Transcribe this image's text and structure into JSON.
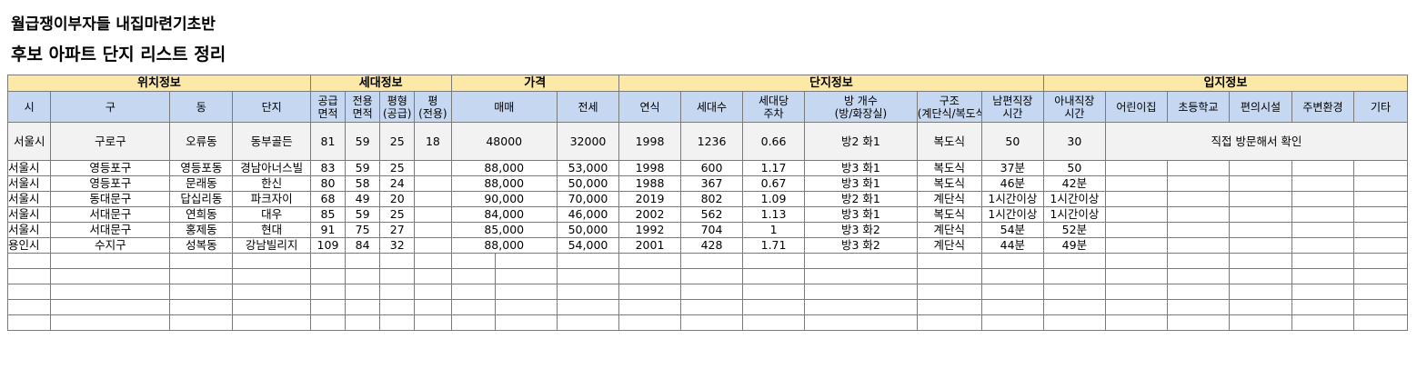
{
  "title_line1": "월급쟁이부자들 내집마련기초반",
  "title_line2": "후보 아파트 단지 리스트 정리",
  "groups": {
    "location": "위치정보",
    "household": "세대정보",
    "price": "가격",
    "complex": "단지정보",
    "site": "입지정보"
  },
  "headers": {
    "city": "시",
    "district": "구",
    "dong": "동",
    "complex": "단지",
    "supply_area": "공급\n면적",
    "exclusive_area": "전용\n면적",
    "pyeong_supply": "평형\n(공급)",
    "pyeong_exclusive": "평\n(전용)",
    "sale": "매매",
    "jeonse": "전세",
    "year": "연식",
    "households": "세대수",
    "parking": "세대당\n주차",
    "rooms": "방 개수\n(방/화장실)",
    "structure": "구조\n(계단식/복도식)",
    "husband_commute": "남편직장\n시간",
    "wife_commute": "아내직장\n시간",
    "daycare": "어린이집",
    "elementary": "초등학교",
    "convenience": "편의시설",
    "surroundings": "주변환경",
    "etc": "기타"
  },
  "sample_row": [
    "서울시",
    "구로구",
    "오류동",
    "동부골든",
    "81",
    "59",
    "25",
    "18",
    "48000",
    "32000",
    "1998",
    "1236",
    "0.66",
    "방2 화1",
    "복도식",
    "50",
    "30"
  ],
  "sample_note": "직접 방문해서 확인",
  "rows": [
    [
      "서울시",
      "영등포구",
      "영등포동",
      "경남아너스빌",
      "83",
      "59",
      "25",
      "",
      "88,000",
      "53,000",
      "1998",
      "600",
      "1.17",
      "방3 화1",
      "복도식",
      "37분",
      "50"
    ],
    [
      "서울시",
      "영등포구",
      "문래동",
      "한신",
      "80",
      "58",
      "24",
      "",
      "88,000",
      "50,000",
      "1988",
      "367",
      "0.67",
      "방3 화1",
      "복도식",
      "46분",
      "42분"
    ],
    [
      "서울시",
      "동대문구",
      "답십리동",
      "파크자이",
      "68",
      "49",
      "20",
      "",
      "90,000",
      "70,000",
      "2019",
      "802",
      "1.09",
      "방2 화1",
      "계단식",
      "1시간이상",
      "1시간이상"
    ],
    [
      "서울시",
      "서대문구",
      "연희동",
      "대우",
      "85",
      "59",
      "25",
      "",
      "84,000",
      "46,000",
      "2002",
      "562",
      "1.13",
      "방3 화1",
      "복도식",
      "1시간이상",
      "1시간이상"
    ],
    [
      "서울시",
      "서대문구",
      "홍제동",
      "현대",
      "91",
      "75",
      "27",
      "",
      "85,000",
      "50,000",
      "1992",
      "704",
      "1",
      "방3 화2",
      "계단식",
      "54분",
      "52분"
    ],
    [
      "용인시",
      "수지구",
      "성복동",
      "강남빌리지",
      "109",
      "84",
      "32",
      "",
      "88,000",
      "54,000",
      "2001",
      "428",
      "1.71",
      "방3 화2",
      "계단식",
      "44분",
      "49분"
    ]
  ]
}
